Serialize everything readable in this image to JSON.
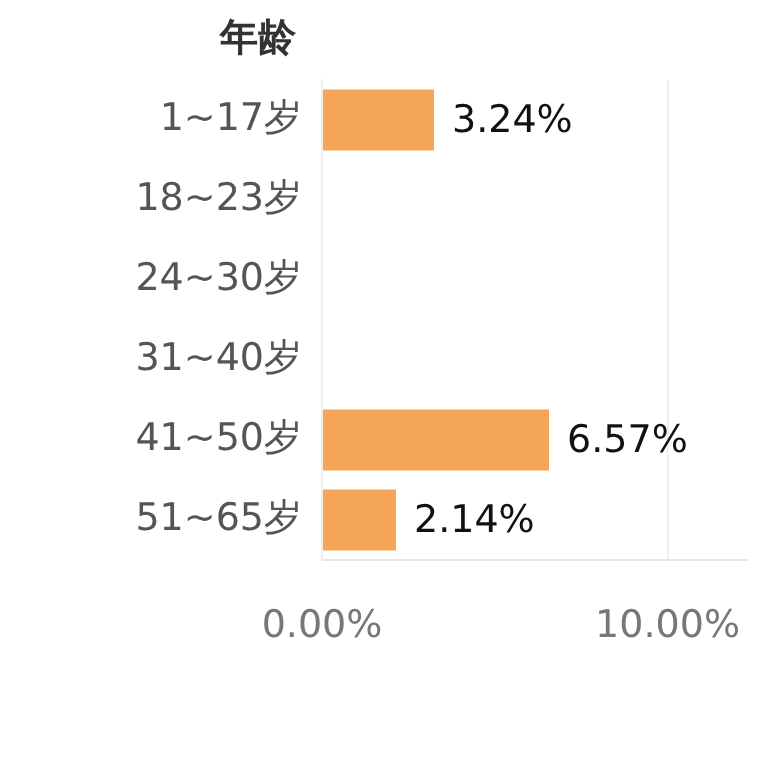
{
  "chart_data": {
    "type": "bar",
    "orientation": "horizontal",
    "ylabel": "年龄",
    "categories": [
      "1~17岁",
      "18~23岁",
      "24~30岁",
      "31~40岁",
      "41~50岁",
      "51~65岁"
    ],
    "values": [
      3.24,
      null,
      null,
      null,
      6.57,
      2.14
    ],
    "value_labels": [
      "3.24%",
      null,
      null,
      null,
      "6.57%",
      "2.14%"
    ],
    "color": "#f5a556",
    "xlim": [
      0,
      12.3
    ],
    "xticks": [
      {
        "value": 0,
        "label": "0.00%"
      },
      {
        "value": 10,
        "label": "10.00%"
      }
    ],
    "grid": "x",
    "legend": false
  }
}
